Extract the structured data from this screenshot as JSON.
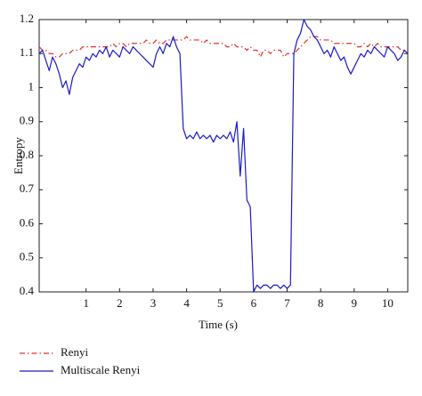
{
  "chart_data": {
    "type": "line",
    "x_label": "Time (s)",
    "y_label": "Entropy",
    "x": [
      -0.4,
      -0.3,
      -0.2,
      -0.1,
      0,
      0.1,
      0.2,
      0.3,
      0.4,
      0.5,
      0.6,
      0.7,
      0.8,
      0.9,
      1,
      1.1,
      1.2,
      1.3,
      1.4,
      1.5,
      1.6,
      1.7,
      1.8,
      1.9,
      2,
      2.1,
      2.2,
      2.3,
      2.4,
      2.5,
      2.6,
      2.7,
      2.8,
      2.9,
      3,
      3.1,
      3.2,
      3.3,
      3.4,
      3.5,
      3.6,
      3.7,
      3.8,
      3.9,
      4,
      4.1,
      4.2,
      4.3,
      4.4,
      4.5,
      4.6,
      4.7,
      4.8,
      4.9,
      5,
      5.1,
      5.2,
      5.3,
      5.4,
      5.5,
      5.6,
      5.7,
      5.8,
      5.9,
      6,
      6.1,
      6.2,
      6.3,
      6.4,
      6.5,
      6.6,
      6.7,
      6.8,
      6.9,
      7,
      7.1,
      7.2,
      7.3,
      7.4,
      7.5,
      7.6,
      7.7,
      7.8,
      7.9,
      8,
      8.1,
      8.2,
      8.3,
      8.4,
      8.5,
      8.6,
      8.7,
      8.8,
      8.9,
      9,
      9.1,
      9.2,
      9.3,
      9.4,
      9.5,
      9.6,
      9.7,
      9.8,
      9.9,
      10,
      10.1,
      10.2,
      10.3,
      10.4,
      10.5,
      10.6
    ],
    "series": [
      {
        "name": "Renyi",
        "color": "#e0302a",
        "linestyle": "dash-dot",
        "values": [
          1.12,
          1.11,
          1.11,
          1.1,
          1.1,
          1.09,
          1.09,
          1.1,
          1.1,
          1.1,
          1.11,
          1.11,
          1.11,
          1.12,
          1.12,
          1.12,
          1.12,
          1.12,
          1.12,
          1.12,
          1.12,
          1.12,
          1.13,
          1.12,
          1.13,
          1.13,
          1.12,
          1.13,
          1.13,
          1.13,
          1.13,
          1.13,
          1.14,
          1.13,
          1.13,
          1.14,
          1.13,
          1.13,
          1.14,
          1.14,
          1.14,
          1.14,
          1.14,
          1.14,
          1.15,
          1.14,
          1.14,
          1.14,
          1.14,
          1.13,
          1.14,
          1.13,
          1.13,
          1.13,
          1.13,
          1.13,
          1.12,
          1.12,
          1.13,
          1.12,
          1.12,
          1.12,
          1.11,
          1.12,
          1.11,
          1.11,
          1.09,
          1.11,
          1.11,
          1.1,
          1.11,
          1.11,
          1.11,
          1.09,
          1.1,
          1.1,
          1.1,
          1.11,
          1.12,
          1.13,
          1.14,
          1.15,
          1.15,
          1.15,
          1.14,
          1.14,
          1.14,
          1.14,
          1.13,
          1.13,
          1.13,
          1.13,
          1.13,
          1.13,
          1.13,
          1.12,
          1.12,
          1.13,
          1.12,
          1.13,
          1.12,
          1.13,
          1.12,
          1.12,
          1.12,
          1.12,
          1.12,
          1.12,
          1.11,
          1.11,
          1.11
        ]
      },
      {
        "name": "Multiscale Renyi",
        "color": "#1a1ac8",
        "linestyle": "solid",
        "values": [
          1.1,
          1.11,
          1.08,
          1.05,
          1.09,
          1.07,
          1.04,
          1.0,
          1.02,
          0.98,
          1.03,
          1.05,
          1.07,
          1.06,
          1.09,
          1.08,
          1.1,
          1.09,
          1.11,
          1.1,
          1.12,
          1.09,
          1.11,
          1.1,
          1.09,
          1.12,
          1.11,
          1.1,
          1.12,
          1.11,
          1.1,
          1.09,
          1.08,
          1.07,
          1.06,
          1.1,
          1.12,
          1.1,
          1.13,
          1.12,
          1.15,
          1.12,
          1.1,
          0.88,
          0.85,
          0.86,
          0.85,
          0.87,
          0.85,
          0.86,
          0.85,
          0.86,
          0.84,
          0.86,
          0.85,
          0.86,
          0.85,
          0.87,
          0.84,
          0.9,
          0.74,
          0.88,
          0.67,
          0.65,
          0.4,
          0.42,
          0.41,
          0.42,
          0.42,
          0.41,
          0.42,
          0.42,
          0.41,
          0.42,
          0.41,
          0.42,
          1.1,
          1.14,
          1.16,
          1.2,
          1.18,
          1.17,
          1.15,
          1.14,
          1.12,
          1.1,
          1.11,
          1.09,
          1.12,
          1.1,
          1.08,
          1.09,
          1.06,
          1.04,
          1.06,
          1.08,
          1.1,
          1.09,
          1.11,
          1.1,
          1.12,
          1.11,
          1.1,
          1.09,
          1.12,
          1.11,
          1.1,
          1.08,
          1.09,
          1.11,
          1.1
        ]
      }
    ],
    "xlim": [
      -0.4,
      10.6
    ],
    "xticks": [
      1,
      2,
      3,
      4,
      5,
      6,
      7,
      8,
      9,
      10
    ],
    "ylim": [
      0.4,
      1.2
    ],
    "yticks": [
      0.4,
      0.5,
      0.6,
      0.7,
      0.8,
      0.9,
      1,
      1.1,
      1.2
    ],
    "grid": false,
    "legend": "bottom-left"
  }
}
